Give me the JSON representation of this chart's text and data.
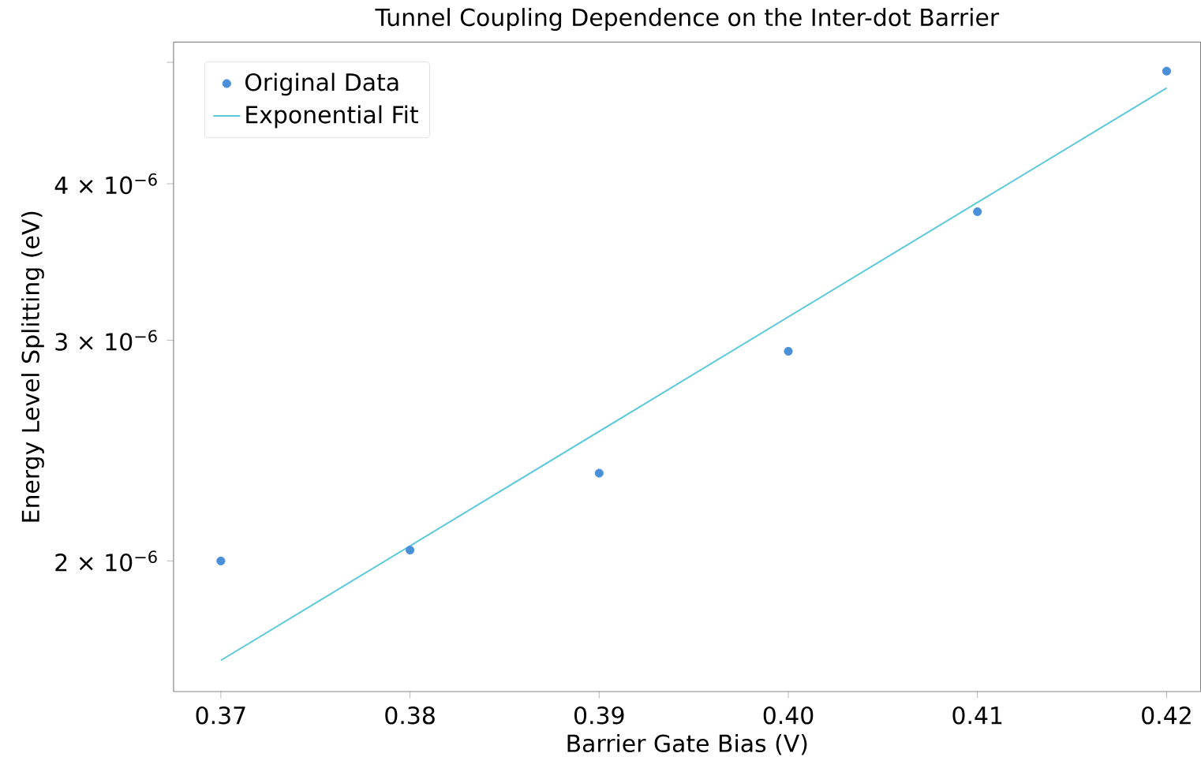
{
  "chart_data": {
    "type": "scatter",
    "title": "Tunnel Coupling Dependence on the Inter-dot Barrier",
    "xlabel": "Barrier Gate Bias (V)",
    "ylabel": "Energy Level Splitting (eV)",
    "log": "y",
    "legend": "top left",
    "grid": false,
    "xlim": [
      0.3675,
      0.4218
    ],
    "xticks": [
      {
        "value": 0.37,
        "label": "0.37"
      },
      {
        "value": 0.38,
        "label": "0.38"
      },
      {
        "value": 0.39,
        "label": "0.39"
      },
      {
        "value": 0.4,
        "label": "0.40"
      },
      {
        "value": 0.41,
        "label": "0.41"
      },
      {
        "value": 0.42,
        "label": "0.42"
      }
    ],
    "ylim": [
      1.573e-06,
      5.19e-06
    ],
    "yticks": [
      {
        "value": 2e-06,
        "label": "2 × 10$^{−6}$"
      },
      {
        "value": 3e-06,
        "label": "3 × 10$^{−6}$"
      },
      {
        "value": 4e-06,
        "label": "4 × 10$^{−6}$"
      },
      {
        "value": 5e-06,
        "label": null
      }
    ],
    "series": [
      {
        "name": "Original Data",
        "marker": "circle",
        "color": "#4a90d9",
        "x": [
          0.37,
          0.38,
          0.39,
          0.4,
          0.41,
          0.42
        ],
        "values": [
          2e-06,
          2.04e-06,
          2.35e-06,
          2.94e-06,
          3.8e-06,
          4.92e-06
        ]
      },
      {
        "name": "Exponential Fit",
        "type": "line",
        "marker": "none",
        "line_style": "solid",
        "color": "#5bc8dc",
        "x": [
          0.37,
          0.42
        ],
        "values": [
          1.666e-06,
          4.77e-06
        ]
      }
    ]
  }
}
